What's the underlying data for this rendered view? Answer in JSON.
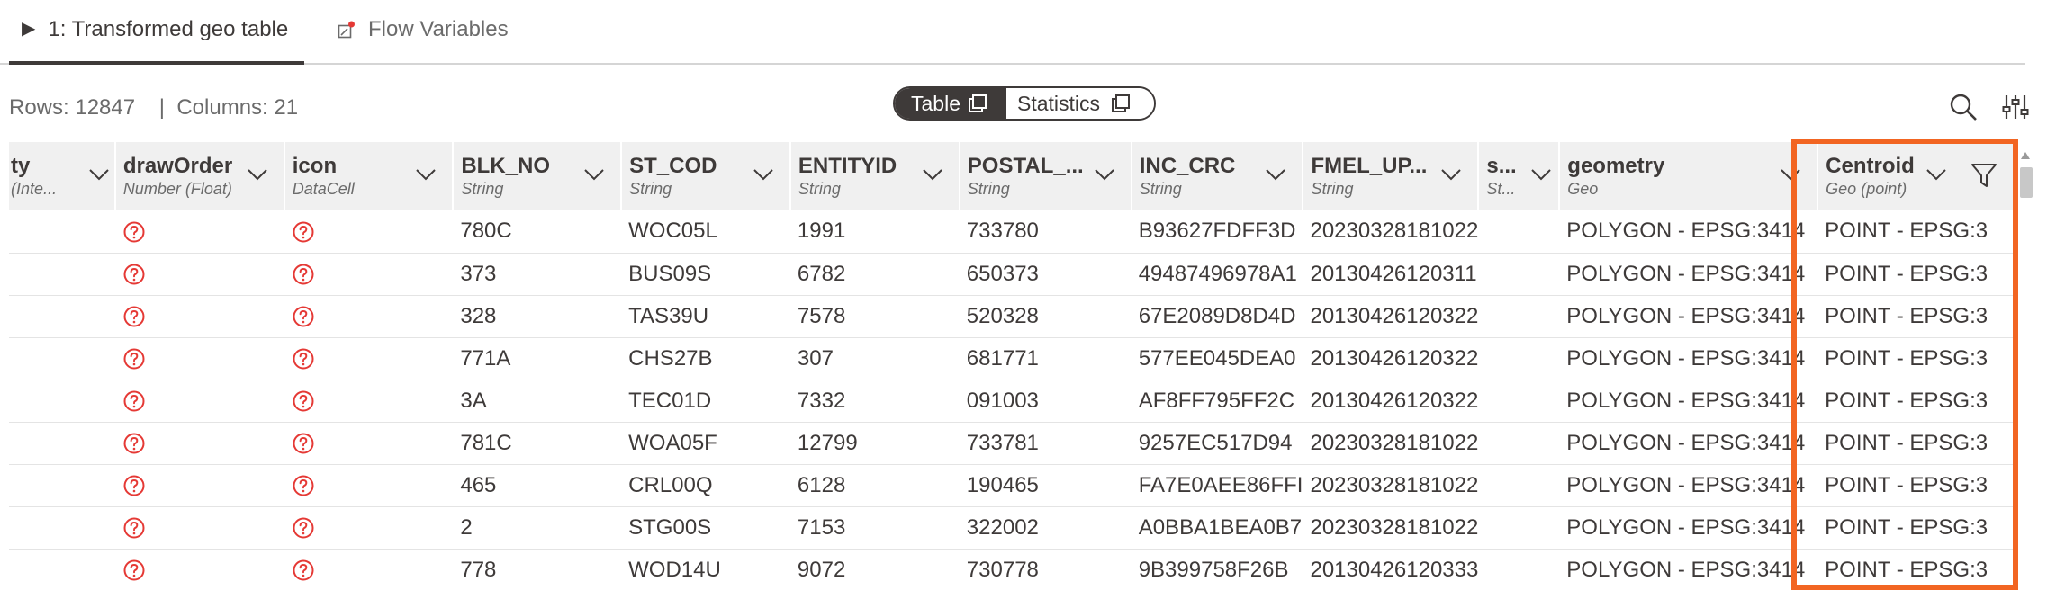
{
  "tabs": [
    {
      "label": "1: Transformed geo table",
      "icon": "play-icon",
      "active": true
    },
    {
      "label": "Flow Variables",
      "icon": "flow-variable-icon",
      "active": false
    }
  ],
  "toolbar": {
    "rows_text": "Rows: 12847",
    "separator": "|",
    "columns_text": "Columns: 21",
    "view_toggle": {
      "table_label": "Table",
      "statistics_label": "Statistics",
      "selected": "Table"
    },
    "icons": [
      "search-icon",
      "column-settings-icon"
    ]
  },
  "columns": [
    {
      "name": "ty",
      "type": "(Inte..."
    },
    {
      "name": "drawOrder",
      "type": "Number (Float)"
    },
    {
      "name": "icon",
      "type": "DataCell"
    },
    {
      "name": "BLK_NO",
      "type": "String"
    },
    {
      "name": "ST_COD",
      "type": "String"
    },
    {
      "name": "ENTITYID",
      "type": "String"
    },
    {
      "name": "POSTAL_...",
      "type": "String"
    },
    {
      "name": "INC_CRC",
      "type": "String"
    },
    {
      "name": "FMEL_UP...",
      "type": "String"
    },
    {
      "name": "s...",
      "type": "St..."
    },
    {
      "name": "geometry",
      "type": "Geo"
    },
    {
      "name": "Centroid",
      "type": "Geo (point)"
    }
  ],
  "rows": [
    {
      "blk": "780C",
      "st": "WOC05L",
      "ent": "1991",
      "post": "733780",
      "inc": "B93627FDFF3D",
      "fmel": "20230328181022",
      "geom": "POLYGON - EPSG:3414",
      "cent": "POINT - EPSG:3"
    },
    {
      "blk": "373",
      "st": "BUS09S",
      "ent": "6782",
      "post": "650373",
      "inc": "49487496978A1",
      "fmel": "20130426120311",
      "geom": "POLYGON - EPSG:3414",
      "cent": "POINT - EPSG:3"
    },
    {
      "blk": "328",
      "st": "TAS39U",
      "ent": "7578",
      "post": "520328",
      "inc": "67E2089D8D4D",
      "fmel": "20130426120322",
      "geom": "POLYGON - EPSG:3414",
      "cent": "POINT - EPSG:3"
    },
    {
      "blk": "771A",
      "st": "CHS27B",
      "ent": "307",
      "post": "681771",
      "inc": "577EE045DEA0",
      "fmel": "20130426120322",
      "geom": "POLYGON - EPSG:3414",
      "cent": "POINT - EPSG:3"
    },
    {
      "blk": "3A",
      "st": "TEC01D",
      "ent": "7332",
      "post": "091003",
      "inc": "AF8FF795FF2C",
      "fmel": "20130426120322",
      "geom": "POLYGON - EPSG:3414",
      "cent": "POINT - EPSG:3"
    },
    {
      "blk": "781C",
      "st": "WOA05F",
      "ent": "12799",
      "post": "733781",
      "inc": "9257EC517D94",
      "fmel": "20230328181022",
      "geom": "POLYGON - EPSG:3414",
      "cent": "POINT - EPSG:3"
    },
    {
      "blk": "465",
      "st": "CRL00Q",
      "ent": "6128",
      "post": "190465",
      "inc": "FA7E0AEE86FFI",
      "fmel": "20230328181022",
      "geom": "POLYGON - EPSG:3414",
      "cent": "POINT - EPSG:3"
    },
    {
      "blk": "2",
      "st": "STG00S",
      "ent": "7153",
      "post": "322002",
      "inc": "A0BBA1BEA0B7",
      "fmel": "20230328181022",
      "geom": "POLYGON - EPSG:3414",
      "cent": "POINT - EPSG:3"
    },
    {
      "blk": "778",
      "st": "WOD14U",
      "ent": "9072",
      "post": "730778",
      "inc": "9B399758F26B",
      "fmel": "20130426120333",
      "geom": "POLYGON - EPSG:3414",
      "cent": "POINT - EPSG:3"
    }
  ],
  "colors": {
    "accent": "#f26522",
    "help_icon": "#e53935",
    "text": "#3e3a39",
    "header_bg": "#f0f0f0"
  }
}
